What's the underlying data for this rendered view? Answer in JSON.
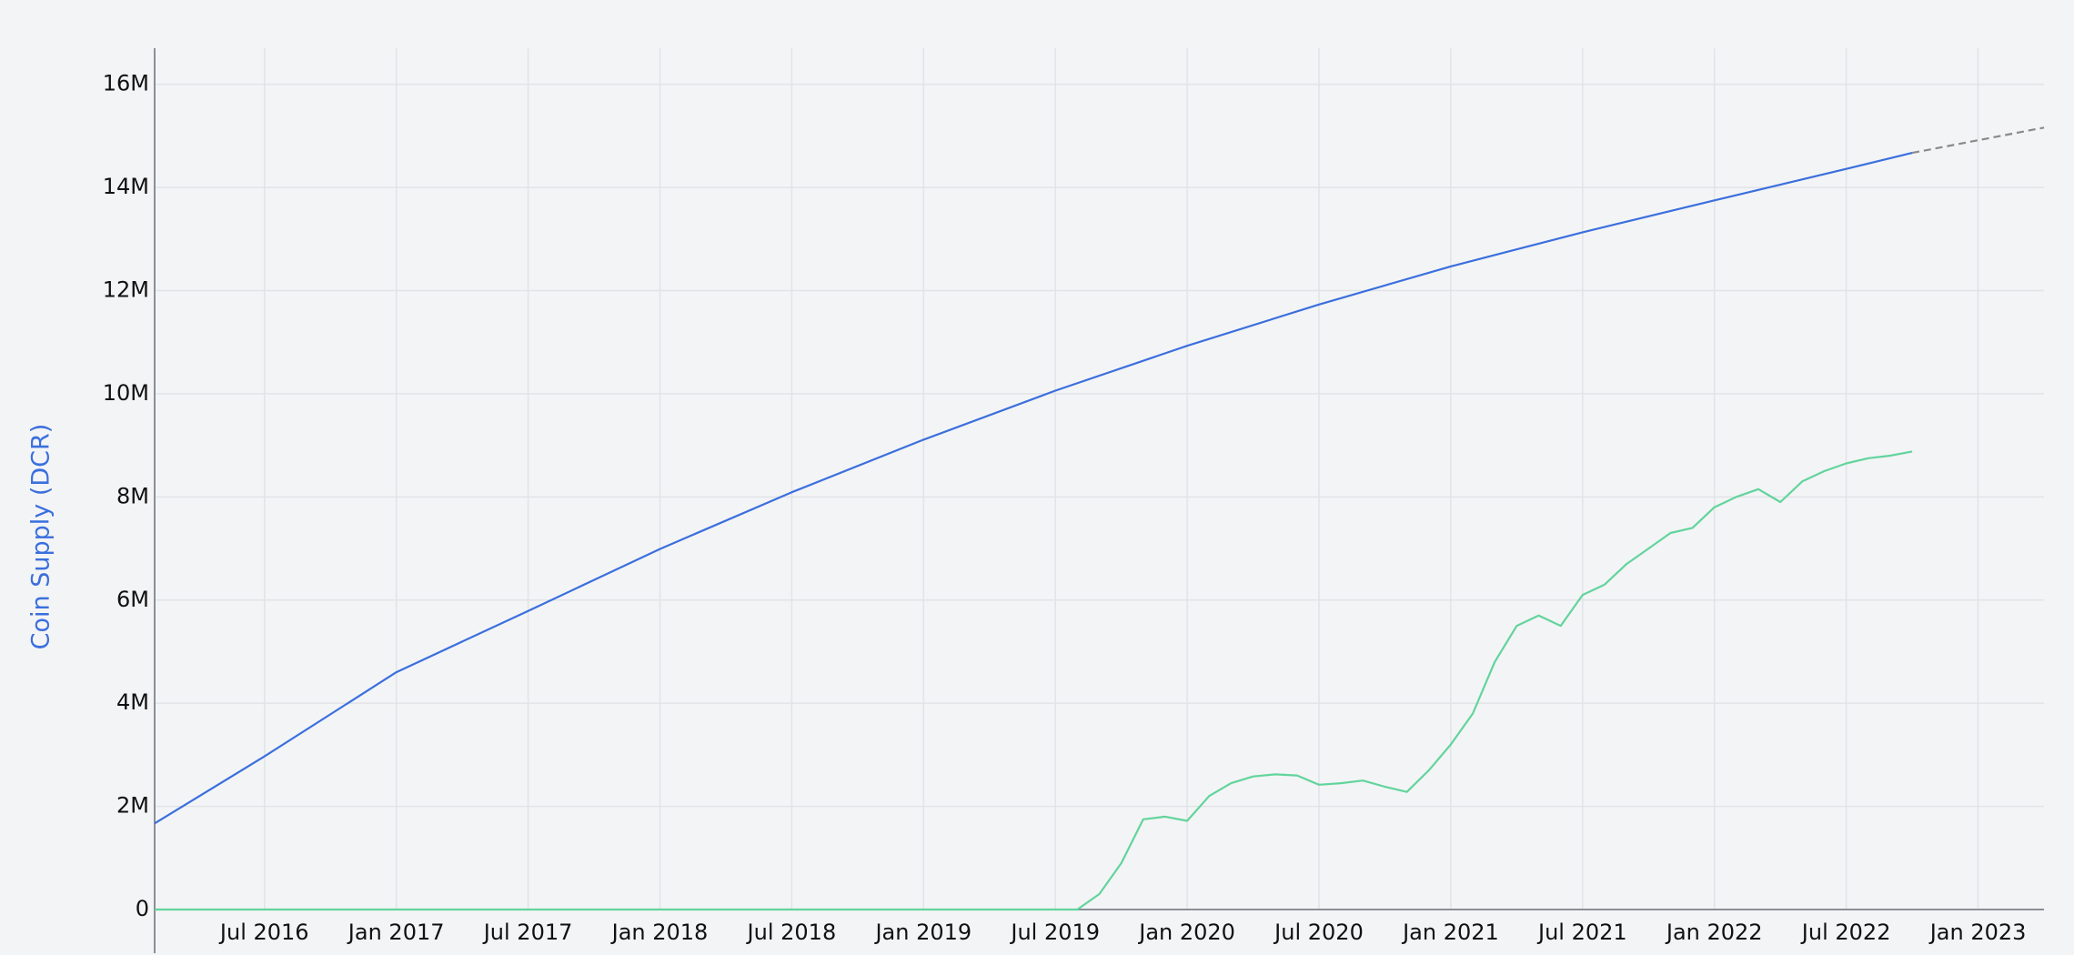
{
  "chart_data": {
    "type": "line",
    "y_label": "Coin Supply (DCR)",
    "xlim": [
      "2016-02",
      "2023-04"
    ],
    "xticks": [
      {
        "value": "2016-07",
        "label": "Jul 2016"
      },
      {
        "value": "2017-01",
        "label": "Jan 2017"
      },
      {
        "value": "2017-07",
        "label": "Jul 2017"
      },
      {
        "value": "2018-01",
        "label": "Jan 2018"
      },
      {
        "value": "2018-07",
        "label": "Jul 2018"
      },
      {
        "value": "2019-01",
        "label": "Jan 2019"
      },
      {
        "value": "2019-07",
        "label": "Jul 2019"
      },
      {
        "value": "2020-01",
        "label": "Jan 2020"
      },
      {
        "value": "2020-07",
        "label": "Jul 2020"
      },
      {
        "value": "2021-01",
        "label": "Jan 2021"
      },
      {
        "value": "2021-07",
        "label": "Jul 2021"
      },
      {
        "value": "2022-01",
        "label": "Jan 2022"
      },
      {
        "value": "2022-07",
        "label": "Jul 2022"
      },
      {
        "value": "2023-01",
        "label": "Jan 2023"
      }
    ],
    "ylim": [
      0,
      16700000
    ],
    "yticks": [
      0,
      {
        "value": 2000000,
        "label": "2M"
      },
      {
        "value": 4000000,
        "label": "4M"
      },
      {
        "value": 6000000,
        "label": "6M"
      },
      {
        "value": 8000000,
        "label": "8M"
      },
      {
        "value": 10000000,
        "label": "10M"
      },
      {
        "value": 12000000,
        "label": "12M"
      },
      {
        "value": 14000000,
        "label": "14M"
      },
      {
        "value": 16000000,
        "label": "16M"
      }
    ],
    "grid": true,
    "series": [
      {
        "color": "#3b6fdd",
        "x": [
          "2016-02",
          "2016-07",
          "2017-01",
          "2017-07",
          "2018-01",
          "2018-07",
          "2019-01",
          "2019-07",
          "2020-01",
          "2020-07",
          "2021-01",
          "2021-07",
          "2022-01",
          "2022-07",
          "2022-10"
        ],
        "values": [
          1670000,
          2970000,
          4600000,
          5790000,
          6990000,
          8090000,
          9110000,
          10060000,
          10930000,
          11730000,
          12470000,
          13130000,
          13750000,
          14360000,
          14670000
        ]
      },
      {
        "color": "#62d49c",
        "x": [
          "2016-02",
          "2019-08",
          "2019-09",
          "2019-10",
          "2019-11",
          "2019-12",
          "2020-01",
          "2020-02",
          "2020-03",
          "2020-04",
          "2020-05",
          "2020-06",
          "2020-07",
          "2020-08",
          "2020-09",
          "2020-10",
          "2020-11",
          "2020-12",
          "2021-01",
          "2021-02",
          "2021-03",
          "2021-04",
          "2021-05",
          "2021-06",
          "2021-07",
          "2021-08",
          "2021-09",
          "2021-10",
          "2021-11",
          "2021-12",
          "2022-01",
          "2022-02",
          "2022-03",
          "2022-04",
          "2022-05",
          "2022-06",
          "2022-07",
          "2022-08",
          "2022-09",
          "2022-10"
        ],
        "values": [
          0,
          0,
          300000,
          900000,
          1750000,
          1800000,
          1720000,
          2200000,
          2450000,
          2580000,
          2620000,
          2600000,
          2420000,
          2450000,
          2500000,
          2380000,
          2280000,
          2700000,
          3200000,
          3800000,
          4800000,
          5500000,
          5700000,
          5500000,
          6100000,
          6300000,
          6700000,
          7000000,
          7300000,
          7400000,
          7800000,
          8000000,
          8150000,
          7900000,
          8300000,
          8500000,
          8650000,
          8750000,
          8800000,
          8880000
        ]
      },
      {
        "color": "#8a8a8a",
        "dashed": true,
        "x": [
          "2022-10",
          "2023-04"
        ],
        "values": [
          14670000,
          15160000
        ]
      }
    ]
  }
}
